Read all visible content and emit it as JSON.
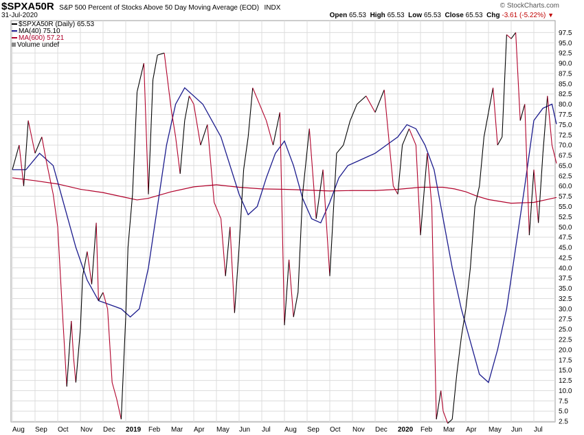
{
  "header": {
    "symbol": "$SPXA50R",
    "description": "S&P 500 Percent of Stocks Above 50 Day Moving Average (EOD)",
    "exchange": "INDX",
    "date": "31-Jul-2020",
    "brand": "© StockCharts.com",
    "open_label": "Open",
    "open": "65.53",
    "high_label": "High",
    "high": "65.53",
    "low_label": "Low",
    "low": "65.53",
    "close_label": "Close",
    "close": "65.53",
    "chg_label": "Chg",
    "chg": "-3.61 (-5.22%)"
  },
  "legend": {
    "price": "$SPXA50R (Daily) 65.53",
    "ma40": "MA(40) 75.10",
    "ma600": "MA(600) 57.21",
    "volume": "Volume undef"
  },
  "colors": {
    "up": "#000000",
    "down": "#b0002a",
    "ma40": "#1a1a8c",
    "ma600": "#b0002a",
    "grid": "#dcdcdc",
    "axis_text": "#000000"
  },
  "chart_data": {
    "type": "line",
    "title": "S&P 500 Percent of Stocks Above 50 Day Moving Average (EOD)",
    "y_range": [
      0,
      100
    ],
    "y_ticks": [
      2.5,
      5.0,
      7.5,
      10.0,
      12.5,
      15.0,
      17.5,
      20.0,
      22.5,
      25.0,
      27.5,
      30.0,
      32.5,
      35.0,
      37.5,
      40.0,
      42.5,
      45.0,
      47.5,
      50.0,
      52.5,
      55.0,
      57.5,
      60.0,
      62.5,
      65.0,
      67.5,
      70.0,
      72.5,
      75.0,
      77.5,
      80.0,
      82.5,
      85.0,
      87.5,
      90.0,
      92.5,
      95.0,
      97.5
    ],
    "x_ticks": [
      {
        "label": "Aug",
        "m": 0
      },
      {
        "label": "Sep",
        "m": 1
      },
      {
        "label": "Oct",
        "m": 2
      },
      {
        "label": "Nov",
        "m": 3
      },
      {
        "label": "Dec",
        "m": 4
      },
      {
        "label": "2019",
        "m": 5,
        "bold": true
      },
      {
        "label": "Feb",
        "m": 6
      },
      {
        "label": "Mar",
        "m": 7
      },
      {
        "label": "Apr",
        "m": 8
      },
      {
        "label": "May",
        "m": 9
      },
      {
        "label": "Jun",
        "m": 10
      },
      {
        "label": "Jul",
        "m": 11
      },
      {
        "label": "Aug",
        "m": 12
      },
      {
        "label": "Sep",
        "m": 13
      },
      {
        "label": "Oct",
        "m": 14
      },
      {
        "label": "Nov",
        "m": 15
      },
      {
        "label": "Dec",
        "m": 16
      },
      {
        "label": "2020",
        "m": 17,
        "bold": true
      },
      {
        "label": "Feb",
        "m": 18
      },
      {
        "label": "Mar",
        "m": 19
      },
      {
        "label": "Apr",
        "m": 20
      },
      {
        "label": "May",
        "m": 21
      },
      {
        "label": "Jun",
        "m": 22
      },
      {
        "label": "Jul",
        "m": 23
      }
    ],
    "series": [
      {
        "name": "$SPXA50R (Daily)",
        "months": [
          0.0,
          0.3,
          0.5,
          0.7,
          1.0,
          1.3,
          1.5,
          1.8,
          2.0,
          2.2,
          2.4,
          2.6,
          2.7,
          2.8,
          3.0,
          3.1,
          3.3,
          3.5,
          3.7,
          3.8,
          4.0,
          4.2,
          4.4,
          4.6,
          4.8,
          5.0,
          5.1,
          5.3,
          5.5,
          5.8,
          6.0,
          6.2,
          6.4,
          6.7,
          7.0,
          7.2,
          7.4,
          7.6,
          7.8,
          8.0,
          8.3,
          8.6,
          8.9,
          9.2,
          9.4,
          9.6,
          9.8,
          10.0,
          10.2,
          10.4,
          10.6,
          10.9,
          11.2,
          11.5,
          11.8,
          12.0,
          12.2,
          12.4,
          12.6,
          12.8,
          13.1,
          13.4,
          13.7,
          14.0,
          14.3,
          14.6,
          14.9,
          15.2,
          15.6,
          16.0,
          16.4,
          16.8,
          17.0,
          17.2,
          17.5,
          17.8,
          18.0,
          18.3,
          18.5,
          18.7,
          18.9,
          19.0,
          19.2,
          19.4,
          19.6,
          19.8,
          20.0,
          20.2,
          20.4,
          20.6,
          20.8,
          21.0,
          21.2,
          21.4,
          21.6,
          21.8,
          22.0,
          22.2,
          22.4,
          22.6,
          22.8,
          23.0,
          23.2,
          23.4,
          23.6,
          23.8,
          24.0
        ],
        "values": [
          64.0,
          70.0,
          60.0,
          76.0,
          68.0,
          72.0,
          66.0,
          58.0,
          50.0,
          30.0,
          11.0,
          27.0,
          18.0,
          12.0,
          25.0,
          38.0,
          44.0,
          36.0,
          51.0,
          32.0,
          34.0,
          30.0,
          12.0,
          8.0,
          3.0,
          28.0,
          45.0,
          58.0,
          83.0,
          90.0,
          58.0,
          86.0,
          92.0,
          92.5,
          79.0,
          72.0,
          63.0,
          76.0,
          82.0,
          80.0,
          70.0,
          75.0,
          56.0,
          52.0,
          38.0,
          50.0,
          29.0,
          45.0,
          64.0,
          72.0,
          84.0,
          80.0,
          76.0,
          70.0,
          78.0,
          26.0,
          42.0,
          28.0,
          34.0,
          58.0,
          74.0,
          52.0,
          64.0,
          38.0,
          68.0,
          70.0,
          76.0,
          80.0,
          82.0,
          78.0,
          83.5,
          60.0,
          58.0,
          70.0,
          74.0,
          70.0,
          48.0,
          68.0,
          55.0,
          3.0,
          10.0,
          5.0,
          2.0,
          3.0,
          14.0,
          23.0,
          30.0,
          40.0,
          55.0,
          60.0,
          72.0,
          78.0,
          84.0,
          70.0,
          72.0,
          97.0,
          96.0,
          97.5,
          76.0,
          80.0,
          48.0,
          64.0,
          51.0,
          68.0,
          82.0,
          70.0,
          65.53
        ]
      },
      {
        "name": "MA(40)",
        "months": [
          0.0,
          0.6,
          1.2,
          1.8,
          2.3,
          2.8,
          3.3,
          3.8,
          4.3,
          4.8,
          5.2,
          5.6,
          6.0,
          6.4,
          6.8,
          7.2,
          7.6,
          8.0,
          8.4,
          8.8,
          9.2,
          9.6,
          10.0,
          10.4,
          10.8,
          11.2,
          11.6,
          12.0,
          12.4,
          12.8,
          13.2,
          13.6,
          14.0,
          14.4,
          14.8,
          15.2,
          15.6,
          16.0,
          16.5,
          17.0,
          17.4,
          17.8,
          18.2,
          18.6,
          19.0,
          19.4,
          19.8,
          20.2,
          20.6,
          21.0,
          21.4,
          21.8,
          22.2,
          22.6,
          23.0,
          23.4,
          23.8,
          24.0
        ],
        "values": [
          64.0,
          64.0,
          68.0,
          65.0,
          55.0,
          45.0,
          37.0,
          32.0,
          31.0,
          30.0,
          28.0,
          30.0,
          40.0,
          55.0,
          70.0,
          80.0,
          84.0,
          82.0,
          80.0,
          76.0,
          72.0,
          65.0,
          58.0,
          53.0,
          55.0,
          62.0,
          68.0,
          71.0,
          65.0,
          57.0,
          52.0,
          51.0,
          56.0,
          62.0,
          65.0,
          66.0,
          67.0,
          68.0,
          70.0,
          72.0,
          75.0,
          74.0,
          70.0,
          64.0,
          52.0,
          40.0,
          30.0,
          22.0,
          14.0,
          12.0,
          20.0,
          30.0,
          45.0,
          60.0,
          76.0,
          79.0,
          80.0,
          75.1
        ]
      },
      {
        "name": "MA(600)",
        "months": [
          0.0,
          1.0,
          2.0,
          3.0,
          4.0,
          5.0,
          5.5,
          6.0,
          7.0,
          8.0,
          9.0,
          10.0,
          11.0,
          12.0,
          13.0,
          14.0,
          15.0,
          16.0,
          17.0,
          18.0,
          19.0,
          19.5,
          20.0,
          20.5,
          21.0,
          22.0,
          23.0,
          23.5,
          24.0
        ],
        "values": [
          62.0,
          61.3,
          60.5,
          59.2,
          58.4,
          57.2,
          56.6,
          57.0,
          58.6,
          59.8,
          60.3,
          59.7,
          59.3,
          59.2,
          59.0,
          58.8,
          58.9,
          58.9,
          59.2,
          59.7,
          59.7,
          59.3,
          58.6,
          57.5,
          56.7,
          55.8,
          56.0,
          56.6,
          57.21
        ]
      }
    ]
  }
}
